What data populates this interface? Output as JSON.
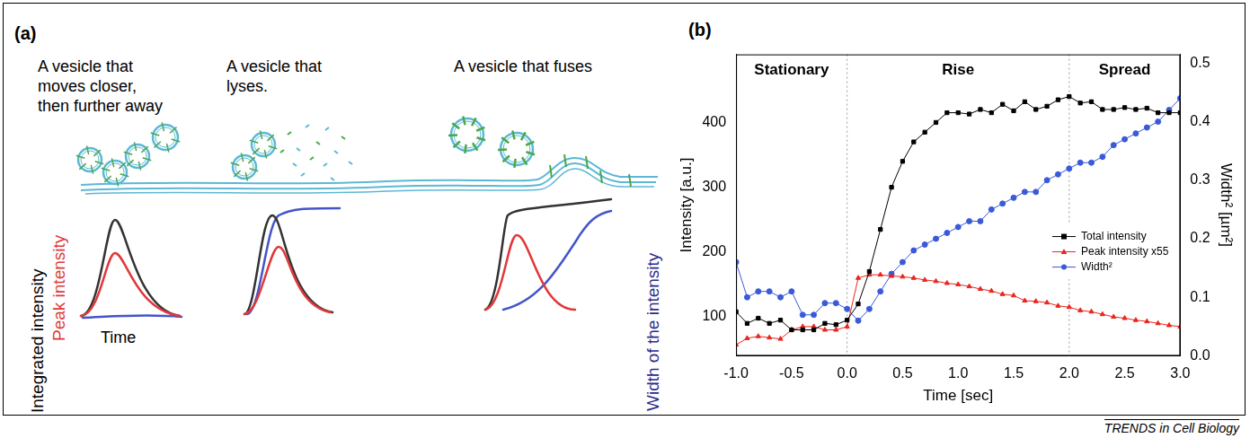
{
  "panel_a": {
    "label": "(a)",
    "captions": [
      [
        "A vesicle that",
        "moves closer,",
        "then further away"
      ],
      [
        "A vesicle that",
        "lyses."
      ],
      [
        "A vesicle that fuses"
      ]
    ],
    "axis_labels": {
      "integrated": "Integrated intensity",
      "peak": "Peak intensity",
      "width": "Width of the intensity",
      "time": "Time"
    }
  },
  "chart_data": {
    "type": "line",
    "panel_label": "(b)",
    "x_label": "Time [sec]",
    "y_label": "Intensity [a.u.]",
    "y2_label": "Width² [µm²]",
    "x": [
      -1.0,
      -0.9,
      -0.8,
      -0.7,
      -0.6,
      -0.5,
      -0.4,
      -0.3,
      -0.2,
      -0.1,
      0.0,
      0.1,
      0.2,
      0.3,
      0.4,
      0.5,
      0.6,
      0.7,
      0.8,
      0.9,
      1.0,
      1.1,
      1.2,
      1.3,
      1.4,
      1.5,
      1.6,
      1.7,
      1.8,
      1.9,
      2.0,
      2.1,
      2.2,
      2.3,
      2.4,
      2.5,
      2.6,
      2.7,
      2.8,
      2.9,
      3.0
    ],
    "xlim": [
      -1,
      3
    ],
    "xticks": [
      {
        "value": -1,
        "label": "-1.0"
      },
      -0.5,
      {
        "value": 0,
        "label": "0.0"
      },
      0.5,
      {
        "value": 1,
        "label": "1.0"
      },
      1.5,
      {
        "value": 2,
        "label": "2.0"
      },
      2.5,
      {
        "value": 3,
        "label": "3.0"
      }
    ],
    "ylim": [
      40,
      505
    ],
    "yticks": [
      100,
      200,
      300,
      400
    ],
    "y2lim": [
      0,
      0.515
    ],
    "y2ticks": [
      {
        "value": 0,
        "label": "0.0"
      },
      0.1,
      0.2,
      0.3,
      0.4,
      0.5
    ],
    "grid": false,
    "legend": "lower right",
    "regions": [
      {
        "label": "Stationary",
        "start": -1,
        "end": 0
      },
      {
        "label": "Rise",
        "start": 0,
        "end": 2
      },
      {
        "label": "Spread",
        "start": 2,
        "end": 3
      }
    ],
    "series": [
      {
        "name": "Total intensity",
        "color": "#000000",
        "marker": "square",
        "line_style": "solid",
        "axis": "y",
        "values": [
          108,
          90,
          98,
          90,
          95,
          80,
          80,
          80,
          90,
          88,
          95,
          120,
          170,
          235,
          300,
          340,
          370,
          385,
          400,
          415,
          415,
          413,
          420,
          415,
          428,
          418,
          432,
          420,
          425,
          435,
          440,
          430,
          432,
          420,
          420,
          423,
          420,
          422,
          415,
          415,
          415
        ]
      },
      {
        "name": "Peak intensity x55",
        "color": "#e8261f",
        "marker": "triangle",
        "line_style": "solid",
        "axis": "y",
        "values": [
          57,
          67,
          70,
          68,
          66,
          80,
          85,
          85,
          80,
          80,
          85,
          160,
          165,
          165,
          163,
          162,
          160,
          157,
          155,
          152,
          150,
          147,
          143,
          140,
          135,
          133,
          125,
          124,
          122,
          117,
          115,
          110,
          108,
          104,
          100,
          98,
          95,
          93,
          90,
          87,
          85
        ]
      },
      {
        "name": "Width²",
        "color": "#3a5ad9",
        "marker": "circle",
        "line_style": "solid",
        "axis": "y2",
        "values": [
          0.16,
          0.1,
          0.11,
          0.11,
          0.1,
          0.11,
          0.07,
          0.07,
          0.09,
          0.09,
          0.08,
          0.06,
          0.08,
          0.11,
          0.14,
          0.16,
          0.18,
          0.19,
          0.2,
          0.21,
          0.22,
          0.23,
          0.23,
          0.25,
          0.26,
          0.27,
          0.28,
          0.28,
          0.3,
          0.31,
          0.32,
          0.33,
          0.33,
          0.34,
          0.36,
          0.37,
          0.38,
          0.39,
          0.4,
          0.42,
          0.44
        ]
      }
    ]
  },
  "footer": "TRENDS in Cell Biology"
}
